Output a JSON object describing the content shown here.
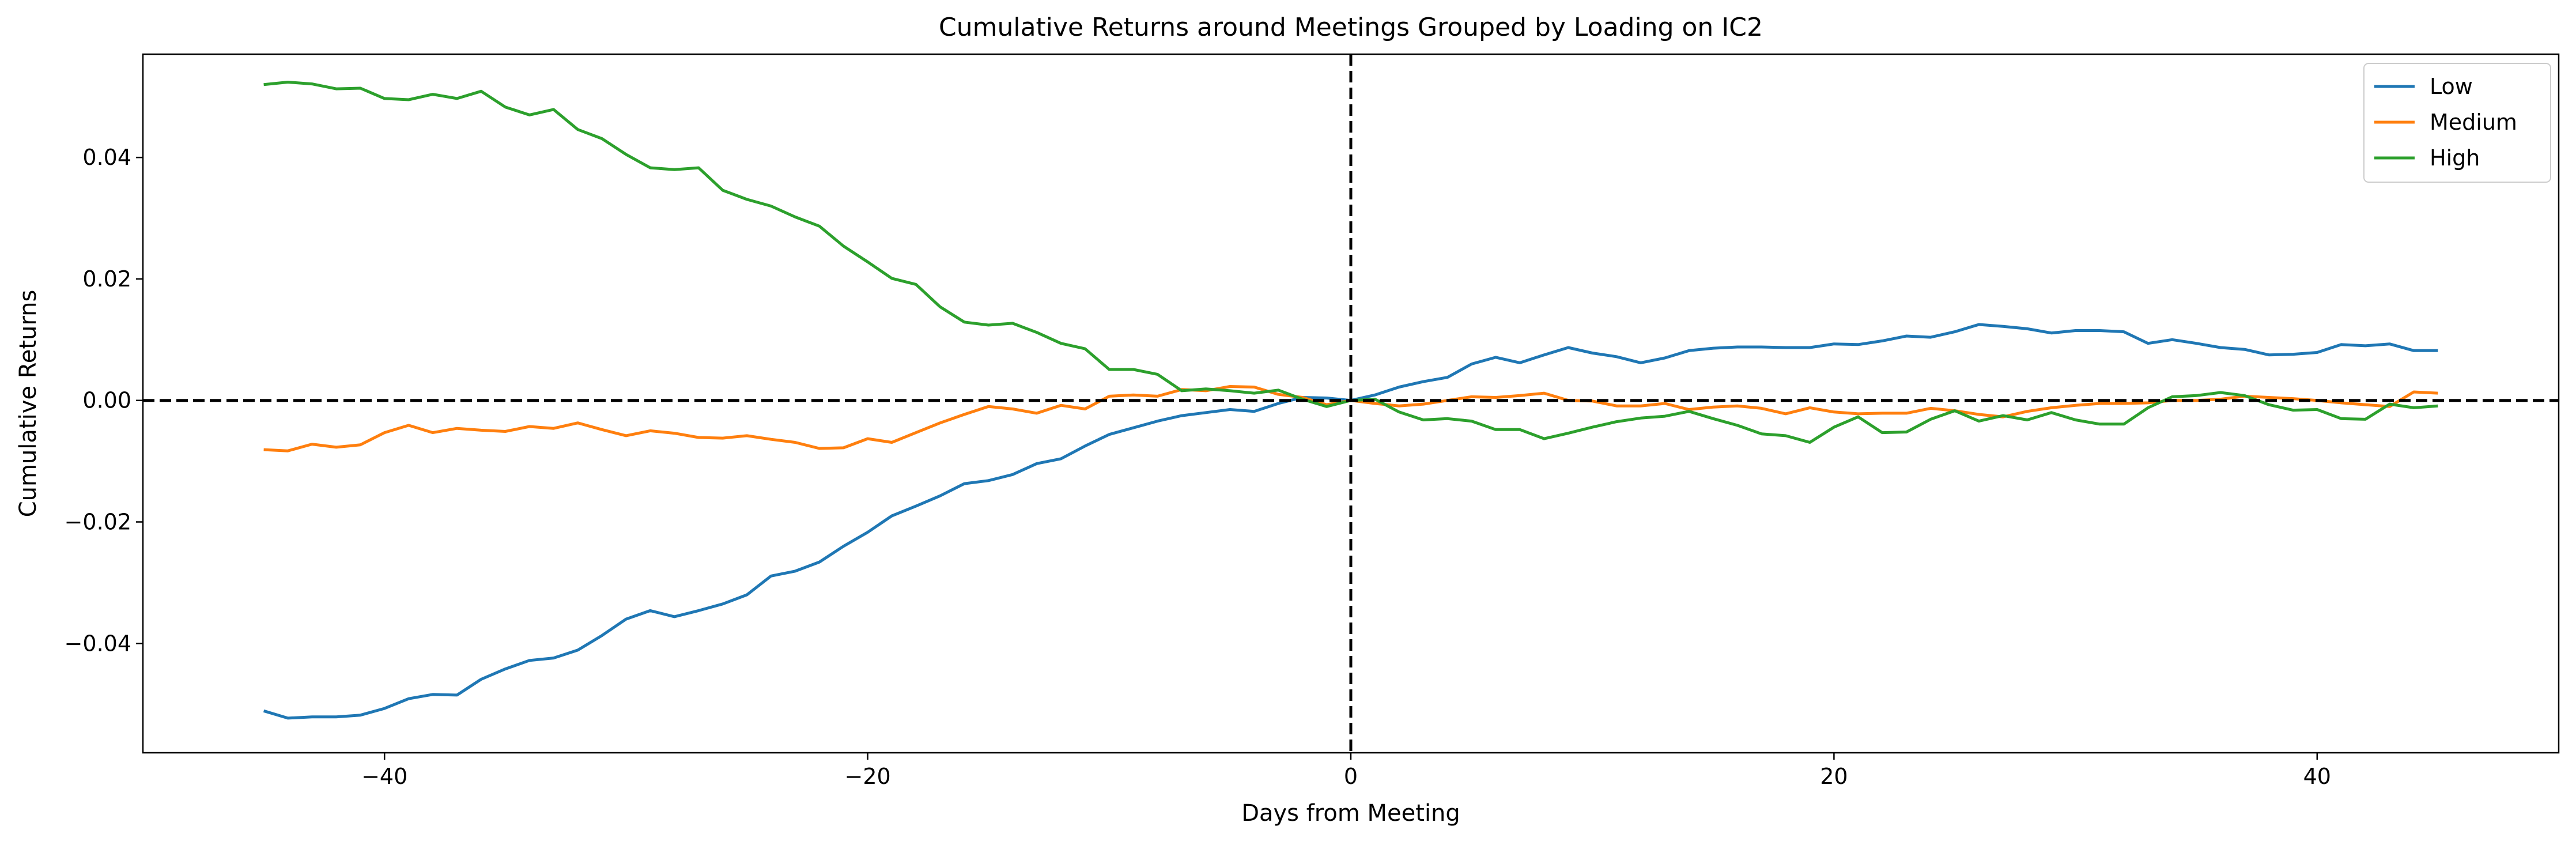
{
  "chart_data": {
    "type": "line",
    "title": "Cumulative Returns around Meetings Grouped by Loading on IC2",
    "xlabel": "Days from Meeting",
    "ylabel": "Cumulative Returns",
    "xlim": [
      -50,
      50
    ],
    "ylim": [
      -0.058,
      0.057
    ],
    "xticks": [
      -40,
      -20,
      0,
      20,
      40
    ],
    "xtick_labels": [
      "−40",
      "−20",
      "0",
      "20",
      "40"
    ],
    "yticks": [
      -0.04,
      -0.02,
      0.0,
      0.02,
      0.04
    ],
    "ytick_labels": [
      "−0.04",
      "−0.02",
      "0.00",
      "0.02",
      "0.04"
    ],
    "grid": false,
    "legend_position": "top-right",
    "reference_lines": [
      {
        "orientation": "vertical",
        "value": 0,
        "style": "dashed",
        "color": "#000000"
      },
      {
        "orientation": "horizontal",
        "value": 0,
        "style": "dashed",
        "color": "#000000"
      }
    ],
    "x": [
      -45,
      -44,
      -43,
      -42,
      -41,
      -40,
      -39,
      -38,
      -37,
      -36,
      -35,
      -34,
      -33,
      -32,
      -31,
      -30,
      -29,
      -28,
      -27,
      -26,
      -25,
      -24,
      -23,
      -22,
      -21,
      -20,
      -19,
      -18,
      -17,
      -16,
      -15,
      -14,
      -13,
      -12,
      -11,
      -10,
      -9,
      -8,
      -7,
      -6,
      -5,
      -4,
      -3,
      -2,
      -1,
      0,
      1,
      2,
      3,
      4,
      5,
      6,
      7,
      8,
      9,
      10,
      11,
      12,
      13,
      14,
      15,
      16,
      17,
      18,
      19,
      20,
      21,
      22,
      23,
      24,
      25,
      26,
      27,
      28,
      29,
      30,
      31,
      32,
      33,
      34,
      35,
      36,
      37,
      38,
      39,
      40,
      41,
      42,
      43,
      44,
      45
    ],
    "series": [
      {
        "name": "Low",
        "color": "#1f77b4",
        "values": [
          -0.0511,
          -0.0523,
          -0.0521,
          -0.0521,
          -0.0518,
          -0.0507,
          -0.0491,
          -0.0484,
          -0.0485,
          -0.0459,
          -0.0442,
          -0.0428,
          -0.0424,
          -0.0411,
          -0.0387,
          -0.036,
          -0.0346,
          -0.0356,
          -0.0346,
          -0.0335,
          -0.032,
          -0.0289,
          -0.0281,
          -0.0266,
          -0.024,
          -0.0217,
          -0.019,
          -0.0174,
          -0.0157,
          -0.0137,
          -0.0132,
          -0.0122,
          -0.0104,
          -0.0096,
          -0.0075,
          -0.0056,
          -0.0045,
          -0.0034,
          -0.0025,
          -0.002,
          -0.0015,
          -0.0018,
          -0.0005,
          0.0005,
          0.0004,
          0.0,
          0.0009,
          0.0022,
          0.0031,
          0.0038,
          0.006,
          0.0071,
          0.0062,
          0.0075,
          0.0087,
          0.0078,
          0.0072,
          0.0062,
          0.007,
          0.0082,
          0.0086,
          0.0088,
          0.0088,
          0.0087,
          0.0087,
          0.0093,
          0.0092,
          0.0098,
          0.0106,
          0.0104,
          0.0113,
          0.0125,
          0.0122,
          0.0118,
          0.0111,
          0.0115,
          0.0115,
          0.0113,
          0.0094,
          0.01,
          0.0094,
          0.0087,
          0.0084,
          0.0075,
          0.0076,
          0.0079,
          0.0092,
          0.009,
          0.0093,
          0.0082,
          0.0082
        ]
      },
      {
        "name": "Medium",
        "color": "#ff7f0e",
        "values": [
          -0.0081,
          -0.0083,
          -0.0072,
          -0.0077,
          -0.0073,
          -0.0053,
          -0.0041,
          -0.0053,
          -0.0046,
          -0.0049,
          -0.0051,
          -0.0043,
          -0.0046,
          -0.0037,
          -0.0048,
          -0.0058,
          -0.005,
          -0.0054,
          -0.0061,
          -0.0062,
          -0.0058,
          -0.0064,
          -0.0069,
          -0.0079,
          -0.0078,
          -0.0063,
          -0.0069,
          -0.0053,
          -0.0037,
          -0.0023,
          -0.001,
          -0.0014,
          -0.0021,
          -0.0008,
          -0.0014,
          0.0007,
          0.0009,
          0.0007,
          0.0018,
          0.0016,
          0.0023,
          0.0022,
          0.001,
          0.0005,
          -0.0007,
          0.0,
          -0.0005,
          -0.0009,
          -0.0006,
          0.0,
          0.0006,
          0.0005,
          0.0008,
          0.0012,
          0.0,
          -0.0001,
          -0.0009,
          -0.0009,
          -0.0005,
          -0.0015,
          -0.0011,
          -0.0009,
          -0.0013,
          -0.0022,
          -0.0012,
          -0.0019,
          -0.0022,
          -0.0021,
          -0.0021,
          -0.0013,
          -0.0017,
          -0.0023,
          -0.0027,
          -0.0018,
          -0.0012,
          -0.0008,
          -0.0005,
          -0.0005,
          -0.0004,
          0.0,
          0.0,
          0.0002,
          0.0007,
          0.0005,
          0.0003,
          0.0,
          -0.0004,
          -0.0007,
          -0.001,
          0.0014,
          0.0012
        ]
      },
      {
        "name": "High",
        "color": "#2ca02c",
        "values": [
          0.052,
          0.0524,
          0.0521,
          0.0513,
          0.0514,
          0.0497,
          0.0495,
          0.0504,
          0.0497,
          0.0509,
          0.0483,
          0.047,
          0.0479,
          0.0446,
          0.0431,
          0.0405,
          0.0383,
          0.038,
          0.0383,
          0.0346,
          0.0331,
          0.032,
          0.0302,
          0.0287,
          0.0254,
          0.0228,
          0.0201,
          0.0191,
          0.0154,
          0.0129,
          0.0124,
          0.0127,
          0.0112,
          0.0094,
          0.0085,
          0.0051,
          0.0051,
          0.0043,
          0.0016,
          0.0019,
          0.0016,
          0.0012,
          0.0017,
          0.0002,
          -0.001,
          0.0,
          0.0002,
          -0.0019,
          -0.0032,
          -0.003,
          -0.0034,
          -0.0048,
          -0.0048,
          -0.0063,
          -0.0054,
          -0.0044,
          -0.0035,
          -0.0029,
          -0.0026,
          -0.0018,
          -0.003,
          -0.0041,
          -0.0055,
          -0.0058,
          -0.0069,
          -0.0044,
          -0.0027,
          -0.0053,
          -0.0052,
          -0.0031,
          -0.0017,
          -0.0034,
          -0.0025,
          -0.0032,
          -0.002,
          -0.0032,
          -0.0039,
          -0.0039,
          -0.0012,
          0.0006,
          0.0008,
          0.0013,
          0.0008,
          -0.0007,
          -0.0016,
          -0.0015,
          -0.003,
          -0.0031,
          -0.0006,
          -0.0012,
          -0.0009
        ]
      }
    ]
  }
}
